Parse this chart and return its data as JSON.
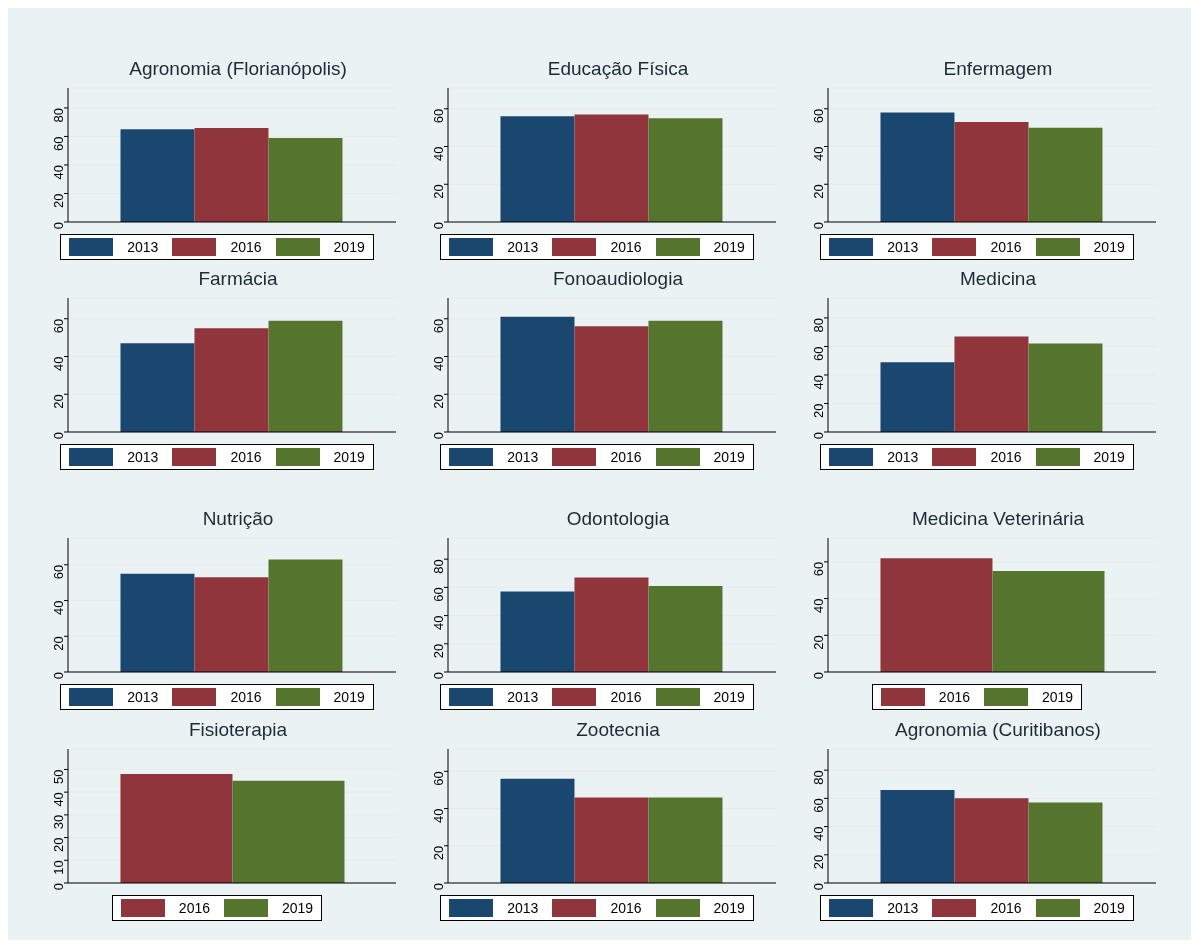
{
  "chart_data": [
    {
      "type": "bar",
      "title": "Agronomia (Florianópolis)",
      "categories": [
        null
      ],
      "series": [
        {
          "name": "2013",
          "color": "#1a476f",
          "values": [
            65
          ]
        },
        {
          "name": "2016",
          "color": "#90353b",
          "values": [
            66
          ]
        },
        {
          "name": "2019",
          "color": "#55752f",
          "values": [
            59
          ]
        }
      ],
      "ylim": [
        0,
        94
      ],
      "yticks": [
        0,
        20,
        40,
        60,
        80
      ],
      "grid": "y",
      "legend": "bottom"
    },
    {
      "type": "bar",
      "title": "Educação Física",
      "categories": [
        null
      ],
      "series": [
        {
          "name": "2013",
          "color": "#1a476f",
          "values": [
            56
          ]
        },
        {
          "name": "2016",
          "color": "#90353b",
          "values": [
            57
          ]
        },
        {
          "name": "2019",
          "color": "#55752f",
          "values": [
            55
          ]
        }
      ],
      "ylim": [
        0,
        71
      ],
      "yticks": [
        0,
        20,
        40,
        60
      ],
      "grid": "y",
      "legend": "bottom"
    },
    {
      "type": "bar",
      "title": "Enfermagem",
      "categories": [
        null
      ],
      "series": [
        {
          "name": "2013",
          "color": "#1a476f",
          "values": [
            58
          ]
        },
        {
          "name": "2016",
          "color": "#90353b",
          "values": [
            53
          ]
        },
        {
          "name": "2019",
          "color": "#55752f",
          "values": [
            50
          ]
        }
      ],
      "ylim": [
        0,
        71
      ],
      "yticks": [
        0,
        20,
        40,
        60
      ],
      "grid": "y",
      "legend": "bottom"
    },
    {
      "type": "bar",
      "title": "Farmácia",
      "categories": [
        null
      ],
      "series": [
        {
          "name": "2013",
          "color": "#1a476f",
          "values": [
            47
          ]
        },
        {
          "name": "2016",
          "color": "#90353b",
          "values": [
            55
          ]
        },
        {
          "name": "2019",
          "color": "#55752f",
          "values": [
            59
          ]
        }
      ],
      "ylim": [
        0,
        71
      ],
      "yticks": [
        0,
        20,
        40,
        60
      ],
      "grid": "y",
      "legend": "bottom"
    },
    {
      "type": "bar",
      "title": "Fonoaudiologia",
      "categories": [
        null
      ],
      "series": [
        {
          "name": "2013",
          "color": "#1a476f",
          "values": [
            61
          ]
        },
        {
          "name": "2016",
          "color": "#90353b",
          "values": [
            56
          ]
        },
        {
          "name": "2019",
          "color": "#55752f",
          "values": [
            59
          ]
        }
      ],
      "ylim": [
        0,
        71
      ],
      "yticks": [
        0,
        20,
        40,
        60
      ],
      "grid": "y",
      "legend": "bottom"
    },
    {
      "type": "bar",
      "title": "Medicina",
      "categories": [
        null
      ],
      "series": [
        {
          "name": "2013",
          "color": "#1a476f",
          "values": [
            49
          ]
        },
        {
          "name": "2016",
          "color": "#90353b",
          "values": [
            67
          ]
        },
        {
          "name": "2019",
          "color": "#55752f",
          "values": [
            62
          ]
        }
      ],
      "ylim": [
        0,
        94
      ],
      "yticks": [
        0,
        20,
        40,
        60,
        80
      ],
      "grid": "y",
      "legend": "bottom"
    },
    {
      "type": "bar",
      "title": "Nutrição",
      "categories": [
        null
      ],
      "series": [
        {
          "name": "2013",
          "color": "#1a476f",
          "values": [
            55
          ]
        },
        {
          "name": "2016",
          "color": "#90353b",
          "values": [
            53
          ]
        },
        {
          "name": "2019",
          "color": "#55752f",
          "values": [
            63
          ]
        }
      ],
      "ylim": [
        0,
        75
      ],
      "yticks": [
        0,
        20,
        40,
        60
      ],
      "grid": "y",
      "legend": "bottom"
    },
    {
      "type": "bar",
      "title": "Odontologia",
      "categories": [
        null
      ],
      "series": [
        {
          "name": "2013",
          "color": "#1a476f",
          "values": [
            57
          ]
        },
        {
          "name": "2016",
          "color": "#90353b",
          "values": [
            67
          ]
        },
        {
          "name": "2019",
          "color": "#55752f",
          "values": [
            61
          ]
        }
      ],
      "ylim": [
        0,
        95
      ],
      "yticks": [
        0,
        20,
        40,
        60,
        80
      ],
      "grid": "y",
      "legend": "bottom"
    },
    {
      "type": "bar",
      "title": "Medicina Veterinária",
      "categories": [
        null
      ],
      "series": [
        {
          "name": "2016",
          "color": "#90353b",
          "values": [
            62
          ]
        },
        {
          "name": "2019",
          "color": "#55752f",
          "values": [
            55
          ]
        }
      ],
      "ylim": [
        0,
        73
      ],
      "yticks": [
        0,
        20,
        40,
        60
      ],
      "grid": "y",
      "legend": "bottom"
    },
    {
      "type": "bar",
      "title": "Fisioterapia",
      "categories": [
        null
      ],
      "series": [
        {
          "name": "2016",
          "color": "#90353b",
          "values": [
            48
          ]
        },
        {
          "name": "2019",
          "color": "#55752f",
          "values": [
            45
          ]
        }
      ],
      "ylim": [
        0,
        59
      ],
      "yticks": [
        0,
        10,
        20,
        30,
        40,
        50
      ],
      "grid": "y",
      "legend": "bottom"
    },
    {
      "type": "bar",
      "title": "Zootecnia",
      "categories": [
        null
      ],
      "series": [
        {
          "name": "2013",
          "color": "#1a476f",
          "values": [
            56
          ]
        },
        {
          "name": "2016",
          "color": "#90353b",
          "values": [
            46
          ]
        },
        {
          "name": "2019",
          "color": "#55752f",
          "values": [
            46
          ]
        }
      ],
      "ylim": [
        0,
        72
      ],
      "yticks": [
        0,
        20,
        40,
        60
      ],
      "grid": "y",
      "legend": "bottom"
    },
    {
      "type": "bar",
      "title": "Agronomia (Curitibanos)",
      "categories": [
        null
      ],
      "series": [
        {
          "name": "2013",
          "color": "#1a476f",
          "values": [
            66
          ]
        },
        {
          "name": "2016",
          "color": "#90353b",
          "values": [
            60
          ]
        },
        {
          "name": "2019",
          "color": "#55752f",
          "values": [
            57
          ]
        }
      ],
      "ylim": [
        0,
        95
      ],
      "yticks": [
        0,
        20,
        40,
        60,
        80
      ],
      "grid": "y",
      "legend": "bottom"
    }
  ]
}
